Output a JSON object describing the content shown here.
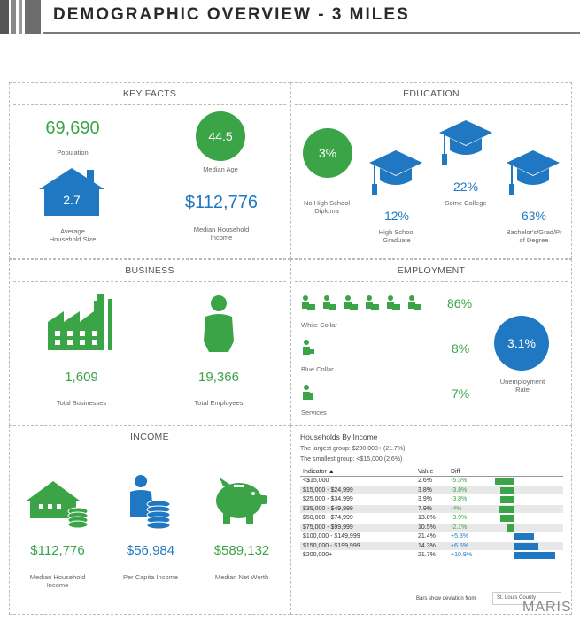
{
  "header": {
    "title": "DEMOGRAPHIC OVERVIEW - 3 MILES"
  },
  "key_facts": {
    "title": "KEY FACTS",
    "population": {
      "value": "69,690",
      "label": "Population"
    },
    "median_age": {
      "value": "44.5",
      "label": "Median Age"
    },
    "household_size": {
      "value": "2.7",
      "label1": "Average",
      "label2": "Household Size"
    },
    "median_income": {
      "value": "$112,776",
      "label1": "Median Household",
      "label2": "Income"
    }
  },
  "education": {
    "title": "EDUCATION",
    "no_hs": {
      "value": "3%",
      "label1": "No High School",
      "label2": "Diploma"
    },
    "hs_grad": {
      "value": "12%",
      "label1": "High School",
      "label2": "Graduate"
    },
    "some_college": {
      "value": "22%",
      "label": "Some College"
    },
    "bachelors": {
      "value": "63%",
      "label1": "Bachelor's/Grad/Pr",
      "label2": "of Degree"
    }
  },
  "business": {
    "title": "BUSINESS",
    "businesses": {
      "value": "1,609",
      "label": "Total Businesses"
    },
    "employees": {
      "value": "19,366",
      "label": "Total Employees"
    }
  },
  "employment": {
    "title": "EMPLOYMENT",
    "white_collar": {
      "value": "86%",
      "label": "White Collar"
    },
    "blue_collar": {
      "value": "8%",
      "label": "Blue Collar"
    },
    "services": {
      "value": "7%",
      "label": "Services"
    },
    "unemployment": {
      "value": "3.1%",
      "label1": "Unemployment",
      "label2": "Rate"
    }
  },
  "income": {
    "title": "INCOME",
    "median_hh": {
      "value": "$112,776",
      "label1": "Median Household",
      "label2": "Income"
    },
    "per_capita": {
      "value": "$56,984",
      "label": "Per Capita Income"
    },
    "net_worth": {
      "value": "$589,132",
      "label": "Median Net Worth"
    }
  },
  "households_by_income": {
    "title": "Households By Income",
    "largest": "The largest group: $200,000+ (21.7%)",
    "smallest": "The smallest group: <$15,000 (2.6%)",
    "columns": [
      "Indicator ▲",
      "Value",
      "Diff"
    ],
    "rows": [
      {
        "indicator": "<$15,000",
        "value": "2.6%",
        "diff": "-5.3%",
        "diff_num": -5.3
      },
      {
        "indicator": "$15,000 - $24,999",
        "value": "3.8%",
        "diff": "-3.8%",
        "diff_num": -3.8
      },
      {
        "indicator": "$25,000 - $34,999",
        "value": "3.9%",
        "diff": "-3.8%",
        "diff_num": -3.8
      },
      {
        "indicator": "$35,000 - $49,999",
        "value": "7.9%",
        "diff": "-4%",
        "diff_num": -4
      },
      {
        "indicator": "$50,000 - $74,999",
        "value": "13.8%",
        "diff": "-3.9%",
        "diff_num": -3.9
      },
      {
        "indicator": "$75,000 - $99,999",
        "value": "10.5%",
        "diff": "-2.1%",
        "diff_num": -2.1
      },
      {
        "indicator": "$100,000 - $149,999",
        "value": "21.4%",
        "diff": "+5.3%",
        "diff_num": 5.3
      },
      {
        "indicator": "$150,000 - $199,999",
        "value": "14.3%",
        "diff": "+6.5%",
        "diff_num": 6.5
      },
      {
        "indicator": "$200,000+",
        "value": "21.7%",
        "diff": "+10.9%",
        "diff_num": 10.9
      }
    ],
    "footnote": "Bars show deviation from",
    "compare_area": "St. Louis County"
  },
  "watermark": "MARIS",
  "colors": {
    "green": "#3aa447",
    "blue": "#1f78c1"
  }
}
